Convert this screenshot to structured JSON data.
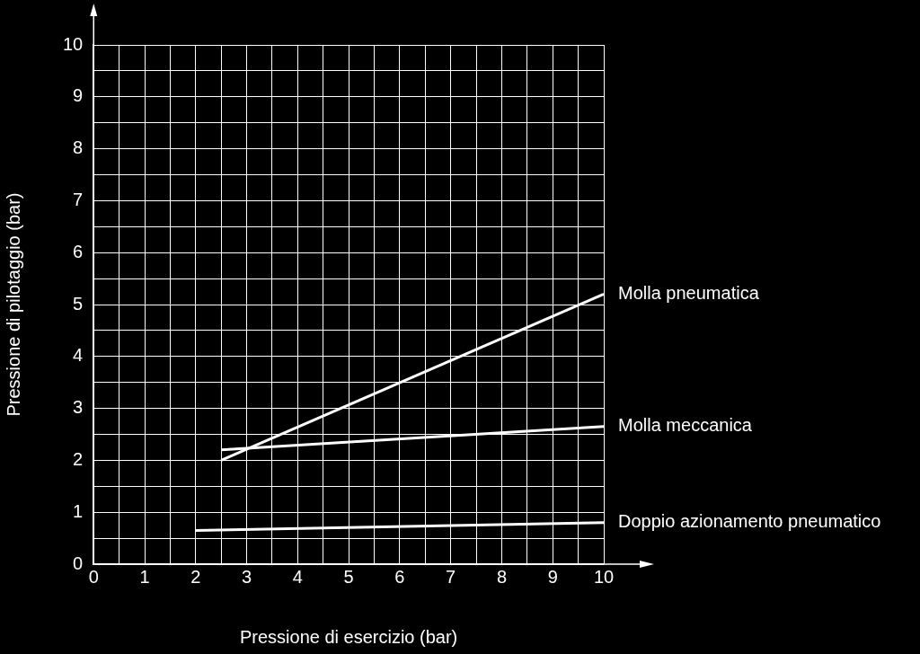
{
  "chart_data": {
    "type": "line",
    "xlabel": "Pressione di esercizio (bar)",
    "ylabel": "Pressione di pilotaggio (bar)",
    "xlim": [
      0,
      10
    ],
    "ylim": [
      0,
      10
    ],
    "xticks": [
      0,
      {
        "value": 0.5,
        "label": null
      },
      1,
      {
        "value": 1.5,
        "label": null
      },
      2,
      {
        "value": 2.5,
        "label": null
      },
      3,
      {
        "value": 3.5,
        "label": null
      },
      4,
      {
        "value": 4.5,
        "label": null
      },
      5,
      {
        "value": 5.5,
        "label": null
      },
      6,
      {
        "value": 6.5,
        "label": null
      },
      7,
      {
        "value": 7.5,
        "label": null
      },
      8,
      {
        "value": 8.5,
        "label": null
      },
      9,
      {
        "value": 9.5,
        "label": null
      },
      10
    ],
    "yticks": [
      0,
      {
        "value": 0.5,
        "label": null
      },
      1,
      {
        "value": 1.5,
        "label": null
      },
      2,
      {
        "value": 2.5,
        "label": null
      },
      3,
      {
        "value": 3.5,
        "label": null
      },
      4,
      {
        "value": 4.5,
        "label": null
      },
      5,
      {
        "value": 5.5,
        "label": null
      },
      6,
      {
        "value": 6.5,
        "label": null
      },
      7,
      {
        "value": 7.5,
        "label": null
      },
      8,
      {
        "value": 8.5,
        "label": null
      },
      9,
      {
        "value": 9.5,
        "label": null
      },
      10
    ],
    "grid": true,
    "series": [
      {
        "name": "Molla pneumatica",
        "color": "#ffffff",
        "x": [
          2.5,
          10
        ],
        "values": [
          2.0,
          5.2
        ]
      },
      {
        "name": "Molla meccanica",
        "color": "#ffffff",
        "x": [
          2.5,
          10
        ],
        "values": [
          2.2,
          2.65
        ]
      },
      {
        "name": "Doppio azionamento pneumatico",
        "color": "#ffffff",
        "x": [
          2,
          10
        ],
        "values": [
          0.65,
          0.8
        ]
      }
    ]
  }
}
